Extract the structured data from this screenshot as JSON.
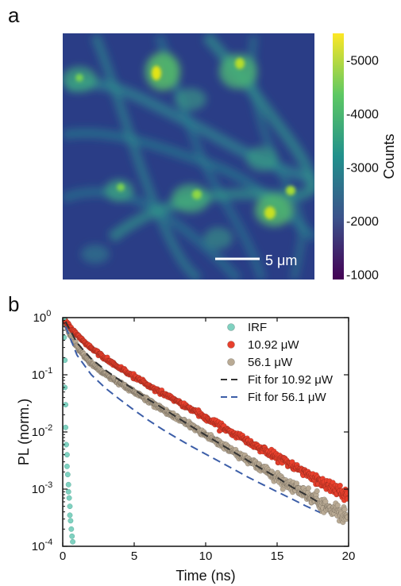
{
  "panel_a_label": "a",
  "panel_b_label": "b",
  "chart_data": [
    {
      "type": "heatmap",
      "panel": "a",
      "colorbar_label": "Counts",
      "colorbar_ticks": [
        1000,
        2000,
        3000,
        4000,
        5000
      ],
      "colorbar_tick_labels": [
        "-1000",
        "-2000",
        "-3000",
        "-4000",
        "-5000"
      ],
      "colorbar_range": [
        900,
        5500
      ],
      "colormap": [
        "#440154",
        "#3b528b",
        "#21908c",
        "#5dc863",
        "#fde725"
      ],
      "scale_bar_label": "5 μm",
      "background_color": "#2a3d86"
    },
    {
      "type": "scatter",
      "panel": "b",
      "xlabel": "Time (ns)",
      "ylabel": "PL (norm.)",
      "xlim": [
        0,
        20
      ],
      "ylim": [
        0.0001,
        1
      ],
      "yscale": "log",
      "x_ticks": [
        0,
        5,
        10,
        15,
        20
      ],
      "y_tick_labels": [
        {
          "base": "10",
          "exp": "0"
        },
        {
          "base": "10",
          "exp": "-1"
        },
        {
          "base": "10",
          "exp": "-2"
        },
        {
          "base": "10",
          "exp": "-3"
        },
        {
          "base": "10",
          "exp": "-4"
        }
      ],
      "legend_position": "top-right",
      "series": [
        {
          "name": "IRF",
          "kind": "points",
          "color": "#7fd1c0",
          "x": [
            0.1,
            0.1,
            0.15,
            0.15,
            0.2,
            0.2,
            0.25,
            0.3,
            0.3,
            0.35,
            0.4,
            0.4,
            0.45,
            0.5,
            0.5,
            0.55,
            0.6,
            0.65,
            0.7
          ],
          "y": [
            1,
            0.45,
            0.18,
            0.06,
            0.03,
            0.012,
            0.006,
            0.004,
            0.0025,
            0.0018,
            0.0012,
            0.0009,
            0.0007,
            0.0005,
            0.00035,
            0.00028,
            0.0002,
            0.00015,
            0.00012
          ]
        },
        {
          "name": "10.92 μW",
          "kind": "points",
          "color": "#e8402d",
          "decay": {
            "a1": 0.55,
            "t1": 0.9,
            "a2": 0.45,
            "t2": 3.1
          }
        },
        {
          "name": "56.1 μW",
          "kind": "points",
          "color": "#b9aa94",
          "decay": {
            "a1": 0.72,
            "t1": 0.55,
            "a2": 0.28,
            "t2": 2.9
          }
        },
        {
          "name": "Fit for 10.92 μW",
          "kind": "dashed-line",
          "color": "#333333",
          "x": [
            0.2,
            1,
            2,
            3,
            4,
            5,
            6,
            7,
            8,
            9,
            10,
            11,
            12,
            13,
            14,
            15,
            16,
            17,
            18
          ],
          "y": [
            0.85,
            0.36,
            0.19,
            0.12,
            0.08,
            0.055,
            0.037,
            0.026,
            0.018,
            0.0125,
            0.0088,
            0.0062,
            0.0044,
            0.0031,
            0.0022,
            0.0016,
            0.0011,
            0.0008,
            0.00057
          ]
        },
        {
          "name": "Fit for 56.1 μW",
          "kind": "dashed-line",
          "color": "#3c5ea8",
          "x": [
            0.2,
            1,
            2,
            3,
            4,
            5,
            6,
            7,
            8,
            9,
            10,
            11,
            12,
            13,
            14,
            15,
            16,
            17,
            18
          ],
          "y": [
            0.7,
            0.22,
            0.1,
            0.058,
            0.037,
            0.024,
            0.016,
            0.011,
            0.0078,
            0.0056,
            0.0041,
            0.003,
            0.0022,
            0.0016,
            0.0012,
            0.0009,
            0.00068,
            0.00051,
            0.00039
          ]
        }
      ]
    }
  ]
}
